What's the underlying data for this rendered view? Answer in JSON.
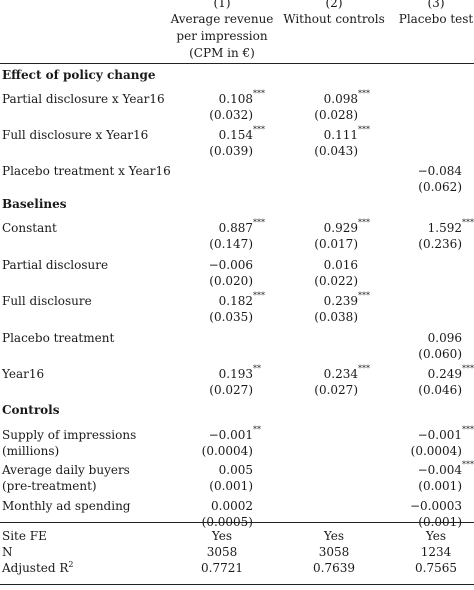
{
  "header": {
    "columns": [
      {
        "number": "(1)",
        "title_lines": [
          "Average revenue",
          "per impression",
          "(CPM in €)"
        ]
      },
      {
        "number": "(2)",
        "title_lines": [
          "Without controls"
        ]
      },
      {
        "number": "(3)",
        "title_lines": [
          "Placebo test"
        ]
      }
    ]
  },
  "sections": [
    {
      "title": "Effect of policy change",
      "rows": [
        {
          "label_lines": [
            "Partial disclosure x Year16"
          ],
          "cells": [
            {
              "coef": "0.108",
              "stars": "***",
              "se": "(0.032)"
            },
            {
              "coef": "0.098",
              "stars": "***",
              "se": "(0.028)"
            },
            null
          ]
        },
        {
          "label_lines": [
            "Full disclosure x Year16"
          ],
          "cells": [
            {
              "coef": "0.154",
              "stars": "***",
              "se": "(0.039)"
            },
            {
              "coef": "0.111",
              "stars": "***",
              "se": "(0.043)"
            },
            null
          ]
        },
        {
          "label_lines": [
            "Placebo treatment x Year16"
          ],
          "cells": [
            null,
            null,
            {
              "coef": "−0.084",
              "stars": "",
              "se": "(0.062)"
            }
          ]
        }
      ]
    },
    {
      "title": "Baselines",
      "rows": [
        {
          "label_lines": [
            "Constant"
          ],
          "cells": [
            {
              "coef": "0.887",
              "stars": "***",
              "se": "(0.147)"
            },
            {
              "coef": "0.929",
              "stars": "***",
              "se": "(0.017)"
            },
            {
              "coef": "1.592",
              "stars": "***",
              "se": "(0.236)"
            }
          ]
        },
        {
          "label_lines": [
            "Partial disclosure"
          ],
          "cells": [
            {
              "coef": "−0.006",
              "stars": "",
              "se": "(0.020)"
            },
            {
              "coef": "0.016",
              "stars": "",
              "se": "(0.022)"
            },
            null
          ]
        },
        {
          "label_lines": [
            "Full disclosure"
          ],
          "cells": [
            {
              "coef": "0.182",
              "stars": "***",
              "se": "(0.035)"
            },
            {
              "coef": "0.239",
              "stars": "***",
              "se": "(0.038)"
            },
            null
          ]
        },
        {
          "label_lines": [
            "Placebo treatment"
          ],
          "cells": [
            null,
            null,
            {
              "coef": "0.096",
              "stars": "",
              "se": "(0.060)"
            }
          ]
        },
        {
          "label_lines": [
            "Year16"
          ],
          "cells": [
            {
              "coef": "0.193",
              "stars": "**",
              "se": "(0.027)"
            },
            {
              "coef": "0.234",
              "stars": "***",
              "se": "(0.027)"
            },
            {
              "coef": "0.249",
              "stars": "***",
              "se": "(0.046)"
            }
          ]
        }
      ]
    },
    {
      "title": "Controls",
      "rows": [
        {
          "label_lines": [
            "Supply of impressions",
            "(millions)"
          ],
          "cells": [
            {
              "coef": "−0.001",
              "stars": "**",
              "se": "(0.0004)"
            },
            null,
            {
              "coef": "−0.001",
              "stars": "***",
              "se": "(0.0004)"
            }
          ]
        },
        {
          "label_lines": [
            "Average daily buyers",
            "(pre-treatment)"
          ],
          "cells": [
            {
              "coef": "0.005",
              "stars": "",
              "se": "(0.001)"
            },
            null,
            {
              "coef": "−0.004",
              "stars": "***",
              "se": "(0.001)"
            }
          ]
        },
        {
          "label_lines": [
            "Monthly ad spending"
          ],
          "cells": [
            {
              "coef": "0.0002",
              "stars": "",
              "se": "(0.0005)"
            },
            null,
            {
              "coef": "−0.0003",
              "stars": "",
              "se": "(0.001)"
            }
          ]
        }
      ]
    }
  ],
  "footer": [
    {
      "label": "Site FE",
      "values": [
        "Yes",
        "Yes",
        "Yes"
      ]
    },
    {
      "label": "N",
      "values": [
        "3058",
        "3058",
        "1234"
      ]
    },
    {
      "label": "Adjusted R",
      "label_sup": "2",
      "values": [
        "0.7721",
        "0.7639",
        "0.7565"
      ]
    }
  ]
}
